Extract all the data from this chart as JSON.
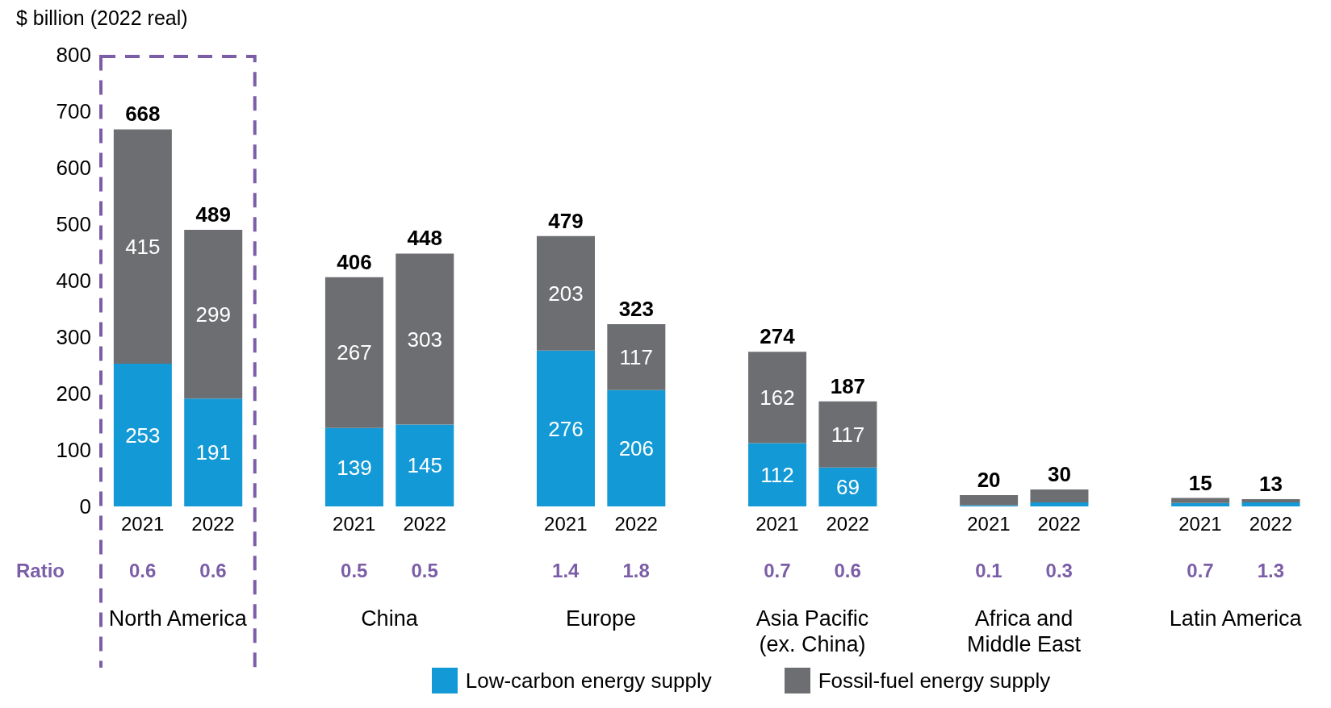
{
  "chart_data": {
    "type": "bar",
    "stacked": true,
    "ylabel": "$ billion (2022 real)",
    "categories": [
      "2021",
      "2022",
      "2021",
      "2022",
      "2021",
      "2022",
      "2021",
      "2022",
      "2021",
      "2022",
      "2021",
      "2022"
    ],
    "series": [
      {
        "name": "Low-carbon energy supply",
        "color": "#139ad6",
        "values": [
          253,
          191,
          139,
          145,
          276,
          206,
          112,
          69,
          2,
          7,
          6,
          7
        ],
        "value_labels": [
          "253",
          "191",
          "139",
          "145",
          "276",
          "206",
          "112",
          "69",
          null,
          null,
          null,
          null
        ]
      },
      {
        "name": "Fossil-fuel energy supply",
        "color": "#6d6e71",
        "values": [
          415,
          299,
          267,
          303,
          203,
          117,
          162,
          117,
          18,
          23,
          9,
          6
        ],
        "value_labels": [
          "415",
          "299",
          "267",
          "303",
          "203",
          "117",
          "162",
          "117",
          null,
          null,
          null,
          null
        ]
      }
    ],
    "totals": [
      "668",
      "489",
      "406",
      "448",
      "479",
      "323",
      "274",
      "187",
      "20",
      "30",
      "15",
      "13"
    ],
    "ylim": [
      0,
      800
    ],
    "yticks": [
      0,
      100,
      200,
      300,
      400,
      500,
      600,
      700,
      800
    ],
    "grid": false,
    "legend": "bottom",
    "annotations": [
      "Ratio",
      "0.6",
      "0.6",
      "0.5",
      "0.5",
      "1.4",
      "1.8",
      "0.7",
      "0.6",
      "0.1",
      "0.3",
      "0.7",
      "1.3",
      "North America",
      "China",
      "Europe",
      "Asia Pacific (ex. China)",
      "Africa and Middle East",
      "Latin America"
    ]
  }
}
